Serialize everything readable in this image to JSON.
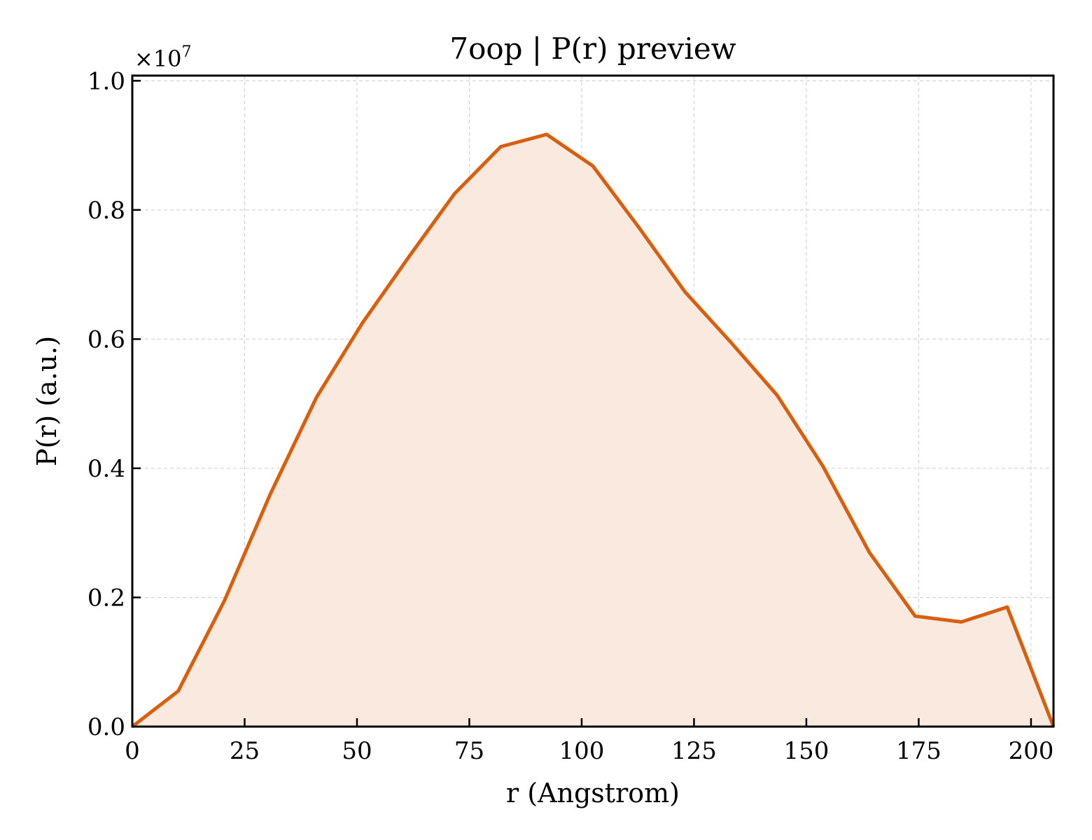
{
  "chart_data": {
    "type": "area",
    "title": "7oop | P(r) preview",
    "xlabel": "r (Angstrom)",
    "ylabel": "P(r) (a.u.)",
    "y_multiplier": "×10",
    "y_multiplier_exp": "7",
    "xlim": [
      0,
      205
    ],
    "ylim": [
      0,
      1.0
    ],
    "xticks": [
      "0",
      "25",
      "50",
      "75",
      "100",
      "125",
      "150",
      "175",
      "200"
    ],
    "yticks": [
      "0.0",
      "0.2",
      "0.4",
      "0.6",
      "0.8",
      "1.0"
    ],
    "grid": true,
    "legend": "none",
    "series": [
      {
        "color": "#d95f0e",
        "fill": "#f9e9df",
        "x": [
          0,
          10.2,
          20.5,
          30.7,
          41.0,
          51.2,
          61.5,
          71.7,
          82.0,
          92.2,
          102.5,
          112.7,
          123.0,
          133.2,
          143.5,
          153.7,
          164.0,
          174.2,
          184.5,
          194.7,
          205.0
        ],
        "y": [
          0.0,
          0.055,
          0.195,
          0.36,
          0.51,
          0.625,
          0.727,
          0.825,
          0.898,
          0.917,
          0.868,
          0.773,
          0.673,
          0.595,
          0.513,
          0.403,
          0.27,
          0.171,
          0.162,
          0.185,
          0.0
        ]
      }
    ]
  }
}
